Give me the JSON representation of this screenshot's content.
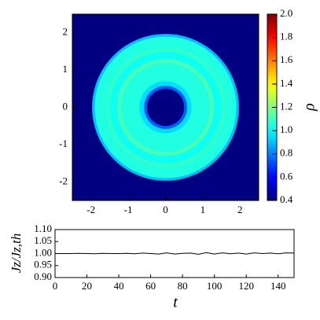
{
  "chart_data": [
    {
      "type": "radial-heatmap",
      "xlim": [
        -2.5,
        2.5
      ],
      "ylim": [
        -2.5,
        2.5
      ],
      "xticks": [
        -2,
        -1,
        0,
        1,
        2
      ],
      "yticks": [
        -2,
        -1,
        0,
        1,
        2
      ],
      "r_bins": [
        0,
        0.5,
        0.58,
        0.7,
        1.2,
        1.3,
        1.5,
        1.6,
        1.9,
        1.97,
        2.5
      ],
      "values": [
        0.4,
        0.75,
        0.95,
        1.05,
        1.12,
        1.02,
        1.08,
        1.05,
        0.9,
        0.4
      ],
      "colormap": "jet",
      "clim": [
        0.4,
        2.0
      ],
      "cticks": [
        0.4,
        0.6,
        0.8,
        {
          "value": 1,
          "label": "1.0"
        },
        1.2,
        1.4,
        1.6,
        1.8,
        {
          "value": 2,
          "label": "2.0"
        }
      ],
      "colorbar_label": "ρ"
    },
    {
      "type": "line",
      "xlim": [
        0,
        150
      ],
      "ylim": [
        0.9,
        1.1
      ],
      "xticks": [
        0,
        20,
        40,
        60,
        80,
        100,
        120,
        140
      ],
      "yticks": [
        {
          "value": 0.9,
          "label": "0.90"
        },
        {
          "value": 0.95,
          "label": "0.95"
        },
        {
          "value": 1,
          "label": "1.00"
        },
        {
          "value": 1.05,
          "label": "1.05"
        },
        {
          "value": 1.1,
          "label": "1.10"
        }
      ],
      "x_label": "t",
      "y_label": "Jz/Jz,th",
      "color": "#000000",
      "x": [
        0,
        5,
        10,
        15,
        20,
        25,
        30,
        35,
        40,
        45,
        50,
        55,
        60,
        65,
        70,
        75,
        80,
        85,
        90,
        95,
        100,
        105,
        110,
        115,
        120,
        125,
        130,
        135,
        140,
        145,
        150
      ],
      "values": [
        1.0,
        1.0,
        1.0,
        1.001,
        1.0,
        0.999,
        1.001,
        1.0,
        1.0,
        1.001,
        0.999,
        1.002,
        1.0,
        0.998,
        1.003,
        0.998,
        1.001,
        1.002,
        0.997,
        1.004,
        0.998,
        1.003,
        0.999,
        1.002,
        0.998,
        1.003,
        1.0,
        1.002,
        0.999,
        1.003,
        1.002
      ]
    }
  ]
}
